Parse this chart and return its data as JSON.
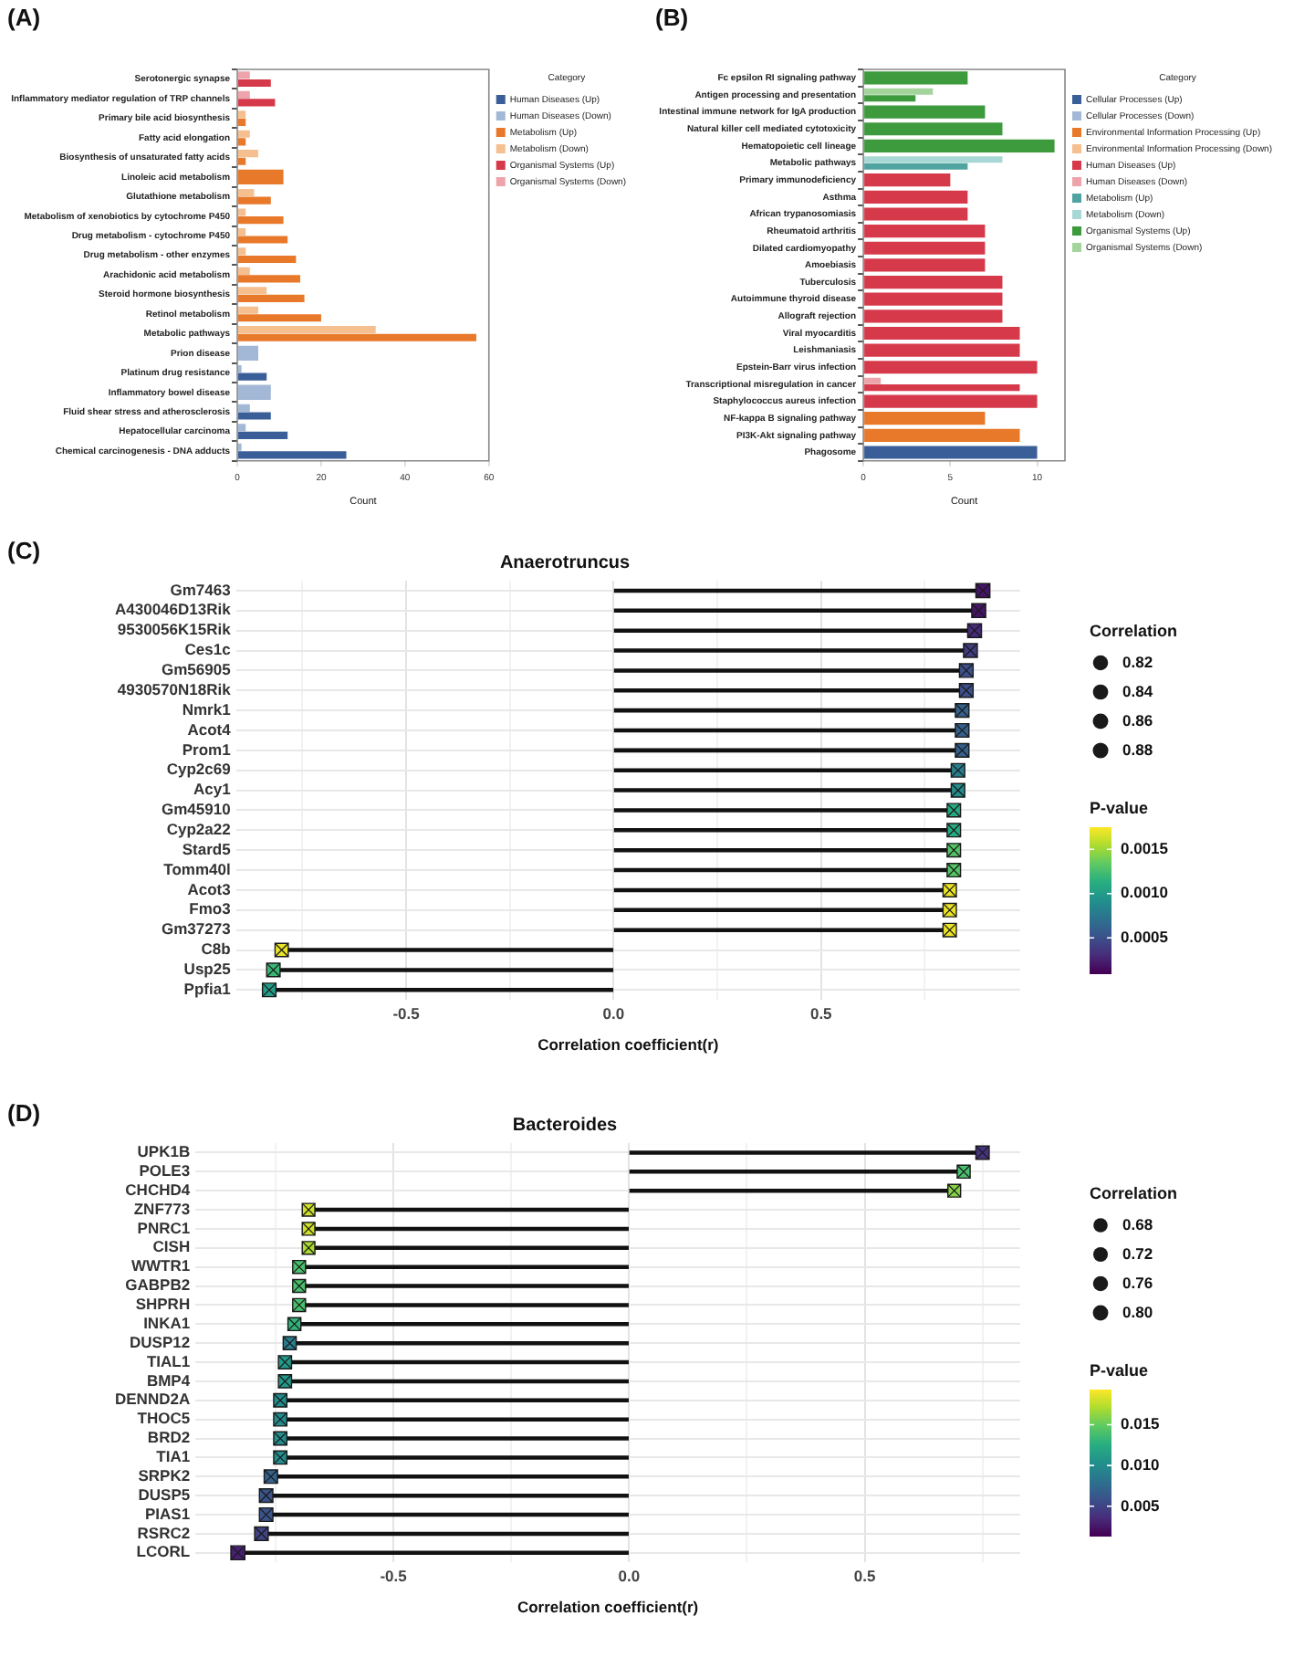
{
  "chart_data": [
    {
      "type": "bar",
      "orientation": "horizontal",
      "annotations": [
        "(A)"
      ],
      "xlabel": "Count",
      "legend": "right",
      "legend_title": "Category",
      "grid": false,
      "xlim": [
        0,
        60
      ],
      "xticks": [
        0,
        20,
        40,
        60
      ],
      "categories": [
        "Serotonergic synapse",
        "Inflammatory mediator regulation of TRP channels",
        "Primary bile acid biosynthesis",
        "Fatty acid elongation",
        "Biosynthesis of unsaturated fatty acids",
        "Linoleic acid metabolism",
        "Glutathione metabolism",
        "Metabolism of xenobiotics by cytochrome P450",
        "Drug metabolism - cytochrome P450",
        "Drug metabolism - other enzymes",
        "Arachidonic acid metabolism",
        "Steroid hormone biosynthesis",
        "Retinol metabolism",
        "Metabolic pathways",
        "Prion disease",
        "Platinum drug resistance",
        "Inflammatory bowel disease",
        "Fluid shear stress and atherosclerosis",
        "Hepatocellular carcinoma",
        "Chemical carcinogenesis - DNA adducts"
      ],
      "series": [
        {
          "name": "Human Diseases (Up)",
          "color": "#3a5f98",
          "values": [
            null,
            null,
            null,
            null,
            null,
            null,
            null,
            null,
            null,
            null,
            null,
            null,
            null,
            null,
            null,
            7,
            null,
            8,
            12,
            26
          ]
        },
        {
          "name": "Human Diseases (Down)",
          "color": "#a3b8d6",
          "values": [
            null,
            null,
            null,
            null,
            null,
            null,
            null,
            null,
            null,
            null,
            null,
            null,
            null,
            null,
            5,
            1,
            8,
            3,
            2,
            1
          ]
        },
        {
          "name": "Metabolism (Up)",
          "color": "#e8792a",
          "values": [
            null,
            null,
            2,
            2,
            2,
            11,
            8,
            11,
            12,
            14,
            15,
            16,
            20,
            57,
            null,
            null,
            null,
            null,
            null,
            null
          ]
        },
        {
          "name": "Metabolism (Down)",
          "color": "#f5bf8f",
          "values": [
            null,
            null,
            2,
            3,
            5,
            null,
            4,
            2,
            2,
            2,
            3,
            7,
            5,
            33,
            null,
            null,
            null,
            null,
            null,
            null
          ]
        },
        {
          "name": "Organismal Systems (Up)",
          "color": "#d63a4a",
          "values": [
            8,
            9,
            null,
            null,
            null,
            null,
            null,
            null,
            null,
            null,
            null,
            null,
            null,
            null,
            null,
            null,
            null,
            null,
            null,
            null
          ]
        },
        {
          "name": "Organismal Systems (Down)",
          "color": "#eea3ab",
          "values": [
            3,
            3,
            null,
            null,
            null,
            null,
            null,
            null,
            null,
            null,
            null,
            null,
            null,
            null,
            null,
            null,
            null,
            null,
            null,
            null
          ]
        }
      ]
    },
    {
      "type": "bar",
      "orientation": "horizontal",
      "annotations": [
        "(B)"
      ],
      "xlabel": "Count",
      "legend": "right",
      "legend_title": "Category",
      "grid": false,
      "xlim": [
        0,
        11.6
      ],
      "xticks": [
        0,
        5,
        10
      ],
      "categories": [
        "Fc epsilon RI signaling pathway",
        "Antigen processing and presentation",
        "Intestinal immune network for IgA production",
        "Natural killer cell mediated cytotoxicity",
        "Hematopoietic cell lineage",
        "Metabolic pathways",
        "Primary immunodeficiency",
        "Asthma",
        "African trypanosomiasis",
        "Rheumatoid arthritis",
        "Dilated cardiomyopathy",
        "Amoebiasis",
        "Tuberculosis",
        "Autoimmune thyroid disease",
        "Allograft rejection",
        "Viral myocarditis",
        "Leishmaniasis",
        "Epstein-Barr virus infection",
        "Transcriptional misregulation in cancer",
        "Staphylococcus aureus infection",
        "NF-kappa B signaling pathway",
        "PI3K-Akt signaling pathway",
        "Phagosome"
      ],
      "series": [
        {
          "name": "Cellular Processes (Up)",
          "color": "#3a5f98",
          "values": [
            null,
            null,
            null,
            null,
            null,
            null,
            null,
            null,
            null,
            null,
            null,
            null,
            null,
            null,
            null,
            null,
            null,
            null,
            null,
            null,
            null,
            null,
            10
          ]
        },
        {
          "name": "Cellular Processes (Down)",
          "color": "#a3b8d6",
          "values": [
            null,
            null,
            null,
            null,
            null,
            null,
            null,
            null,
            null,
            null,
            null,
            null,
            null,
            null,
            null,
            null,
            null,
            null,
            null,
            null,
            null,
            null,
            null
          ]
        },
        {
          "name": "Environmental Information Processing (Up)",
          "color": "#e8792a",
          "values": [
            null,
            null,
            null,
            null,
            null,
            null,
            null,
            null,
            null,
            null,
            null,
            null,
            null,
            null,
            null,
            null,
            null,
            null,
            null,
            null,
            7,
            9,
            null
          ]
        },
        {
          "name": "Environmental Information Processing (Down)",
          "color": "#f5bf8f",
          "values": [
            null,
            null,
            null,
            null,
            null,
            null,
            null,
            null,
            null,
            null,
            null,
            null,
            null,
            null,
            null,
            null,
            null,
            null,
            null,
            null,
            null,
            null,
            null
          ]
        },
        {
          "name": "Human Diseases (Up)",
          "color": "#d63a4a",
          "values": [
            null,
            null,
            null,
            null,
            null,
            null,
            5,
            6,
            6,
            7,
            7,
            7,
            8,
            8,
            8,
            9,
            9,
            10,
            9,
            10,
            null,
            null,
            null
          ]
        },
        {
          "name": "Human Diseases (Down)",
          "color": "#eea3ab",
          "values": [
            null,
            null,
            null,
            null,
            null,
            null,
            null,
            null,
            null,
            null,
            null,
            null,
            null,
            null,
            null,
            null,
            null,
            null,
            1,
            null,
            null,
            null,
            null
          ]
        },
        {
          "name": "Metabolism (Up)",
          "color": "#4fa3a0",
          "values": [
            null,
            null,
            null,
            null,
            null,
            6,
            null,
            null,
            null,
            null,
            null,
            null,
            null,
            null,
            null,
            null,
            null,
            null,
            null,
            null,
            null,
            null,
            null
          ]
        },
        {
          "name": "Metabolism (Down)",
          "color": "#a8d8d5",
          "values": [
            null,
            null,
            null,
            null,
            null,
            8,
            null,
            null,
            null,
            null,
            null,
            null,
            null,
            null,
            null,
            null,
            null,
            null,
            null,
            null,
            null,
            null,
            null
          ]
        },
        {
          "name": "Organismal Systems (Up)",
          "color": "#3d9a3d",
          "values": [
            6,
            3,
            7,
            8,
            11,
            null,
            null,
            null,
            null,
            null,
            null,
            null,
            null,
            null,
            null,
            null,
            null,
            null,
            null,
            null,
            null,
            null,
            null
          ]
        },
        {
          "name": "Organismal Systems (Down)",
          "color": "#a3d49b",
          "values": [
            null,
            4,
            null,
            null,
            null,
            null,
            null,
            null,
            null,
            null,
            null,
            null,
            null,
            null,
            null,
            null,
            null,
            null,
            null,
            null,
            null,
            null,
            null
          ]
        }
      ]
    },
    {
      "type": "lollipop",
      "orientation": "horizontal",
      "annotations": [
        "(C)"
      ],
      "title": "Anaerotruncus",
      "xlabel": "Correlation coefficient(r)",
      "legend_title": "Correlation",
      "clabel": "P-value",
      "grid": true,
      "marker": "square",
      "xlim": [
        -0.91,
        0.98
      ],
      "xticks": [
        {
          "value": -0.75,
          "label": null
        },
        -0.5,
        {
          "value": -0.25,
          "label": null
        },
        {
          "value": 0,
          "label": "0.0"
        },
        {
          "value": 0.25,
          "label": null
        },
        0.5,
        {
          "value": 0.75,
          "label": null
        }
      ],
      "categories": [
        "Gm7463",
        "A430046D13Rik",
        "9530056K15Rik",
        "Ces1c",
        "Gm56905",
        "4930570N18Rik",
        "Nmrk1",
        "Acot4",
        "Prom1",
        "Cyp2c69",
        "Acy1",
        "Gm45910",
        "Cyp2a22",
        "Stard5",
        "Tomm40l",
        "Acot3",
        "Fmo3",
        "Gm37273",
        "C8b",
        "Usp25",
        "Ppfia1"
      ],
      "values": [
        0.89,
        0.88,
        0.87,
        0.86,
        0.85,
        0.85,
        0.84,
        0.84,
        0.84,
        0.83,
        0.83,
        0.82,
        0.82,
        0.82,
        0.82,
        0.81,
        0.81,
        0.81,
        -0.8,
        -0.82,
        -0.83
      ],
      "sizes": [
        0.89,
        0.88,
        0.87,
        0.86,
        0.85,
        0.85,
        0.84,
        0.84,
        0.84,
        0.83,
        0.83,
        0.82,
        0.82,
        0.82,
        0.82,
        0.81,
        0.81,
        0.81,
        0.8,
        0.82,
        0.83
      ],
      "size_legend": [
        0.82,
        0.84,
        0.86,
        0.88
      ],
      "cvalues": [
        0.0002,
        0.0002,
        0.0003,
        0.0004,
        0.0005,
        0.0005,
        0.0006,
        0.0006,
        0.0006,
        0.0008,
        0.0009,
        0.0011,
        0.0011,
        0.0013,
        0.0013,
        0.0017,
        0.0017,
        0.0017,
        0.0017,
        0.0012,
        0.001
      ],
      "clim": [
        0.0001,
        0.00175
      ],
      "cticks": [
        0.0005,
        {
          "value": 0.001,
          "label": "0.0010"
        },
        0.0015
      ]
    },
    {
      "type": "lollipop",
      "orientation": "horizontal",
      "annotations": [
        "(D)"
      ],
      "title": "Bacteroides",
      "xlabel": "Correlation coefficient(r)",
      "legend_title": "Correlation",
      "clabel": "P-value",
      "grid": true,
      "marker": "square",
      "xlim": [
        -0.92,
        0.83
      ],
      "xticks": [
        {
          "value": -0.75,
          "label": null
        },
        -0.5,
        {
          "value": -0.25,
          "label": null
        },
        {
          "value": 0,
          "label": "0.0"
        },
        {
          "value": 0.25,
          "label": null
        },
        0.5,
        {
          "value": 0.75,
          "label": null
        }
      ],
      "categories": [
        "UPK1B",
        "POLE3",
        "CHCHD4",
        "ZNF773",
        "PNRC1",
        "CISH",
        "WWTR1",
        "GABPB2",
        "SHPRH",
        "INKA1",
        "DUSP12",
        "TIAL1",
        "BMP4",
        "DENND2A",
        "THOC5",
        "BRD2",
        "TIA1",
        "SRPK2",
        "DUSP5",
        "PIAS1",
        "RSRC2",
        "LCORL"
      ],
      "values": [
        0.75,
        0.71,
        0.69,
        -0.68,
        -0.68,
        -0.68,
        -0.7,
        -0.7,
        -0.7,
        -0.71,
        -0.72,
        -0.73,
        -0.73,
        -0.74,
        -0.74,
        -0.74,
        -0.74,
        -0.76,
        -0.77,
        -0.77,
        -0.78,
        -0.83
      ],
      "sizes": [
        0.75,
        0.71,
        0.69,
        0.68,
        0.68,
        0.68,
        0.7,
        0.7,
        0.7,
        0.71,
        0.72,
        0.73,
        0.73,
        0.74,
        0.74,
        0.74,
        0.74,
        0.76,
        0.77,
        0.77,
        0.78,
        0.83
      ],
      "size_legend": [
        0.68,
        0.72,
        0.76,
        {
          "value": 0.8,
          "label": "0.80"
        }
      ],
      "cvalues": [
        0.004,
        0.014,
        0.016,
        0.018,
        0.018,
        0.017,
        0.014,
        0.014,
        0.014,
        0.013,
        0.009,
        0.011,
        0.011,
        0.01,
        0.01,
        0.01,
        0.01,
        0.007,
        0.006,
        0.006,
        0.005,
        0.003
      ],
      "clim": [
        0.0014,
        0.0193
      ],
      "cticks": [
        0.005,
        {
          "value": 0.01,
          "label": "0.010"
        },
        0.015
      ]
    }
  ]
}
